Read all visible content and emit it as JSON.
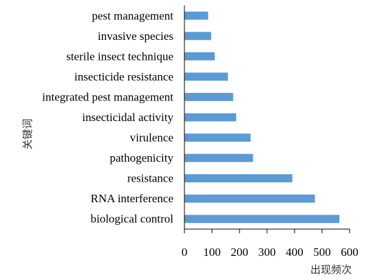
{
  "chart_data": {
    "type": "bar",
    "orientation": "horizontal",
    "categories": [
      "pest management",
      "invasive species",
      "sterile insect technique",
      "insecticide resistance",
      "integrated pest management",
      "insecticidal activity",
      "virulence",
      "pathogenicity",
      "resistance",
      "RNA interference",
      "biological control"
    ],
    "values": [
      86,
      97,
      110,
      158,
      177,
      188,
      240,
      249,
      392,
      474,
      563
    ],
    "xlim": [
      0,
      600
    ],
    "xticks": [
      "0",
      "100",
      "200",
      "300",
      "400",
      "500",
      "600"
    ],
    "xlabel": "出现频次",
    "ylabel": "关键词",
    "bar_color": "#5B9BD5",
    "grid": false,
    "legend": "none"
  }
}
